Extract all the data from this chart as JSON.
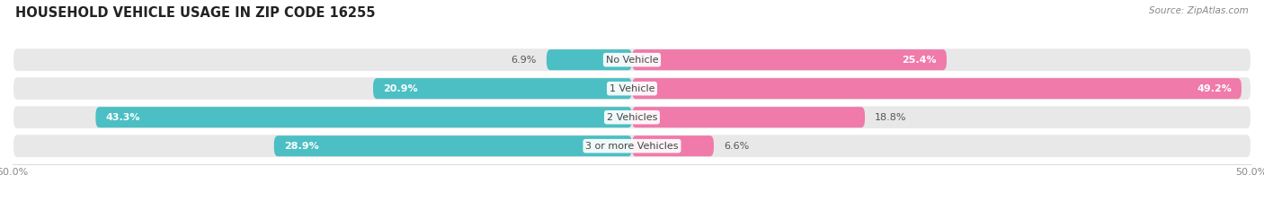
{
  "title": "HOUSEHOLD VEHICLE USAGE IN ZIP CODE 16255",
  "source": "Source: ZipAtlas.com",
  "categories": [
    "No Vehicle",
    "1 Vehicle",
    "2 Vehicles",
    "3 or more Vehicles"
  ],
  "owner_values": [
    6.9,
    20.9,
    43.3,
    28.9
  ],
  "renter_values": [
    25.4,
    49.2,
    18.8,
    6.6
  ],
  "owner_color": "#4bbfc4",
  "renter_color": "#f07aaa",
  "bar_bg_color": "#e8e8e8",
  "row_bg_color": "#f5f5f5",
  "xlim": [
    -50,
    50
  ],
  "title_fontsize": 10.5,
  "source_fontsize": 7.5,
  "label_fontsize": 8,
  "cat_fontsize": 8,
  "tick_fontsize": 8,
  "figsize": [
    14.06,
    2.34
  ],
  "dpi": 100
}
